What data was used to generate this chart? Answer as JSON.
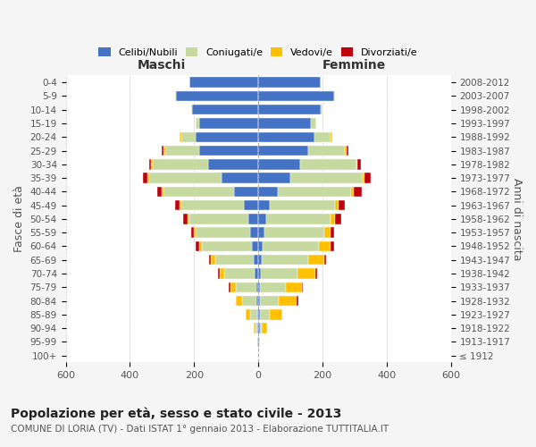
{
  "age_groups": [
    "100+",
    "95-99",
    "90-94",
    "85-89",
    "80-84",
    "75-79",
    "70-74",
    "65-69",
    "60-64",
    "55-59",
    "50-54",
    "45-49",
    "40-44",
    "35-39",
    "30-34",
    "25-29",
    "20-24",
    "15-19",
    "10-14",
    "5-9",
    "0-4"
  ],
  "birth_years": [
    "≤ 1912",
    "1913-1917",
    "1918-1922",
    "1923-1927",
    "1928-1932",
    "1933-1937",
    "1938-1942",
    "1943-1947",
    "1948-1952",
    "1953-1957",
    "1958-1962",
    "1963-1967",
    "1968-1972",
    "1973-1977",
    "1978-1982",
    "1983-1987",
    "1988-1992",
    "1993-1997",
    "1998-2002",
    "2003-2007",
    "2008-2012"
  ],
  "male_celibi": [
    1,
    2,
    3,
    4,
    5,
    6,
    10,
    14,
    20,
    25,
    30,
    45,
    75,
    115,
    155,
    185,
    195,
    185,
    205,
    255,
    215
  ],
  "male_coniugati": [
    0,
    2,
    5,
    20,
    45,
    65,
    95,
    120,
    155,
    170,
    185,
    195,
    220,
    225,
    175,
    105,
    45,
    10,
    5,
    5,
    0
  ],
  "male_vedovi": [
    0,
    0,
    5,
    15,
    20,
    15,
    15,
    15,
    10,
    5,
    5,
    5,
    5,
    5,
    5,
    5,
    5,
    0,
    0,
    0,
    0
  ],
  "male_divorziati": [
    0,
    0,
    0,
    0,
    0,
    5,
    5,
    5,
    10,
    10,
    15,
    15,
    15,
    15,
    5,
    5,
    0,
    0,
    0,
    0,
    0
  ],
  "female_nubili": [
    1,
    2,
    4,
    5,
    5,
    5,
    8,
    10,
    15,
    20,
    25,
    35,
    60,
    100,
    130,
    155,
    175,
    165,
    195,
    235,
    195
  ],
  "female_coniugati": [
    0,
    2,
    8,
    30,
    60,
    80,
    115,
    145,
    175,
    185,
    200,
    205,
    230,
    225,
    175,
    115,
    50,
    15,
    5,
    5,
    0
  ],
  "female_vedovi": [
    0,
    2,
    15,
    40,
    55,
    50,
    55,
    50,
    35,
    20,
    15,
    10,
    8,
    5,
    5,
    5,
    5,
    0,
    0,
    0,
    0
  ],
  "female_divorziati": [
    0,
    0,
    0,
    0,
    5,
    5,
    5,
    5,
    10,
    10,
    20,
    20,
    25,
    20,
    10,
    5,
    0,
    0,
    0,
    0,
    0
  ],
  "color_celibi": "#4472c4",
  "color_coniugati": "#c5d9a0",
  "color_vedovi": "#ffc000",
  "color_divorziati": "#c0000c",
  "xlim": 600,
  "title": "Popolazione per età, sesso e stato civile - 2013",
  "subtitle": "COMUNE DI LORIA (TV) - Dati ISTAT 1° gennaio 2013 - Elaborazione TUTTITALIA.IT",
  "ylabel_left": "Fasce di età",
  "ylabel_right": "Anni di nascita",
  "xlabel_left": "Maschi",
  "xlabel_right": "Femmine",
  "bg_color": "#f5f5f5",
  "plot_bg_color": "#ffffff",
  "legend_labels": [
    "Celibi/Nubili",
    "Coniugati/e",
    "Vedovi/e",
    "Divorziati/e"
  ]
}
